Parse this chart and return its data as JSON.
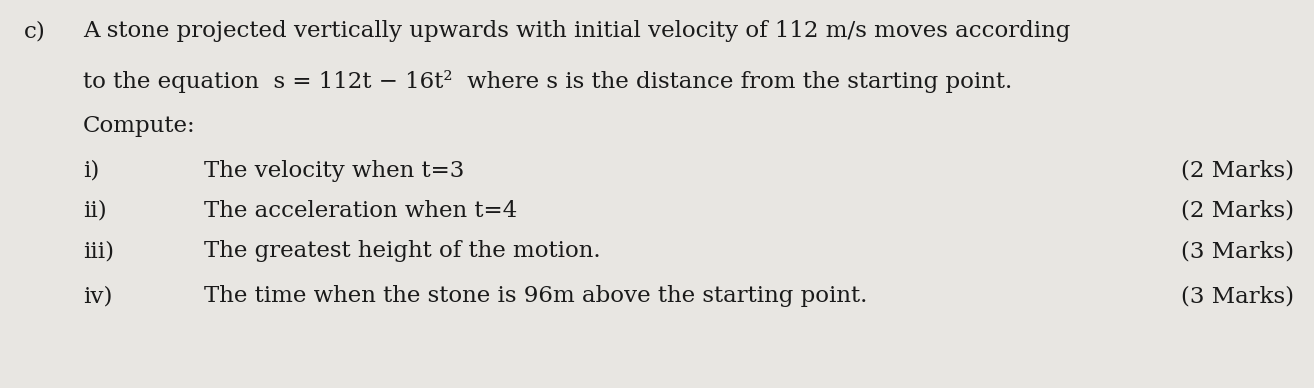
{
  "background_color": "#e8e6e2",
  "text_color": "#1a1a1a",
  "label_c": "c)",
  "line1": "A stone projected vertically upwards with initial velocity of 112 m/s moves according",
  "line2": "to the equation  s = 112t − 16t²  where s is the distance from the starting point.",
  "line3": "Compute:",
  "items": [
    {
      "num": "i)",
      "text": "The velocity when t=3",
      "marks": "(2 Marks)"
    },
    {
      "num": "ii)",
      "text": "The acceleration when t=4",
      "marks": "(2 Marks)"
    },
    {
      "num": "iii)",
      "text": "The greatest height of the motion.",
      "marks": "(3 Marks)"
    },
    {
      "num": "iv)",
      "text": "The time when the stone is 96m above the starting point.",
      "marks": "(3 Marks)"
    }
  ],
  "font_size_main": 16.5,
  "font_size_items": 16.5,
  "font_family": "DejaVu Serif",
  "figwidth": 13.14,
  "figheight": 3.88,
  "dpi": 100
}
